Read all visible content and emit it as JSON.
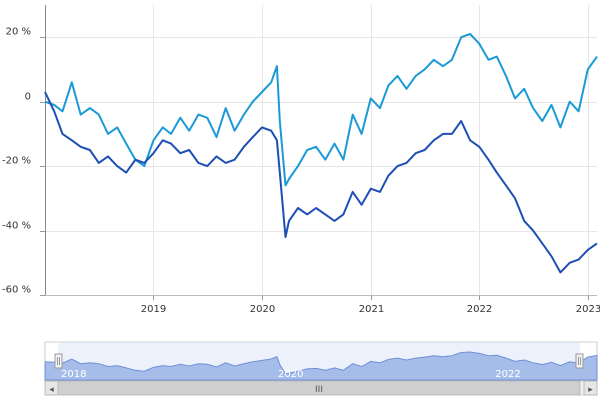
{
  "chart_data": {
    "type": "line",
    "title": "",
    "xlabel": "",
    "ylabel": "",
    "xlim": [
      "2018-01-01",
      "2023-02-01"
    ],
    "ylim": [
      -60,
      30
    ],
    "y_ticks": [
      -60,
      -40,
      -20,
      0,
      20
    ],
    "y_tick_labels": [
      "-60 %",
      "-40 %",
      "-20 %",
      "0",
      "20 %"
    ],
    "x_ticks": [
      "2019-01-01",
      "2020-01-01",
      "2021-01-01",
      "2022-01-01",
      "2023-01-01"
    ],
    "x_tick_labels": [
      "2019",
      "2020",
      "2021",
      "2022",
      "2023"
    ],
    "grid": true,
    "series": [
      {
        "color": "#1a9ad6",
        "x": [
          "2018-01-01",
          "2018-02-01",
          "2018-03-01",
          "2018-04-01",
          "2018-05-01",
          "2018-06-01",
          "2018-07-01",
          "2018-08-01",
          "2018-09-01",
          "2018-10-01",
          "2018-11-01",
          "2018-12-01",
          "2019-01-01",
          "2019-02-01",
          "2019-03-01",
          "2019-04-01",
          "2019-05-01",
          "2019-06-01",
          "2019-07-01",
          "2019-08-01",
          "2019-09-01",
          "2019-10-01",
          "2019-11-01",
          "2019-12-01",
          "2020-01-01",
          "2020-02-01",
          "2020-02-20",
          "2020-03-01",
          "2020-03-20",
          "2020-04-01",
          "2020-05-01",
          "2020-06-01",
          "2020-07-01",
          "2020-08-01",
          "2020-09-01",
          "2020-10-01",
          "2020-11-01",
          "2020-12-01",
          "2021-01-01",
          "2021-02-01",
          "2021-03-01",
          "2021-04-01",
          "2021-05-01",
          "2021-06-01",
          "2021-07-01",
          "2021-08-01",
          "2021-09-01",
          "2021-10-01",
          "2021-11-01",
          "2021-12-01",
          "2022-01-01",
          "2022-02-01",
          "2022-03-01",
          "2022-04-01",
          "2022-05-01",
          "2022-06-01",
          "2022-07-01",
          "2022-08-01",
          "2022-09-01",
          "2022-10-01",
          "2022-11-01",
          "2022-12-01",
          "2023-01-01",
          "2023-02-01"
        ],
        "values": [
          0,
          -1,
          -3,
          6,
          -4,
          -2,
          -4,
          -10,
          -8,
          -13,
          -18,
          -20,
          -12,
          -8,
          -10,
          -5,
          -9,
          -4,
          -5,
          -11,
          -2,
          -9,
          -4,
          0,
          3,
          6,
          11,
          -6,
          -26,
          -24,
          -20,
          -15,
          -14,
          -18,
          -13,
          -18,
          -4,
          -10,
          1,
          -2,
          5,
          8,
          4,
          8,
          10,
          13,
          11,
          13,
          20,
          21,
          18,
          13,
          14,
          8,
          1,
          4,
          -2,
          -6,
          -1,
          -8,
          0,
          -3,
          10,
          14
        ]
      },
      {
        "color": "#1d4fb5",
        "x": [
          "2018-01-01",
          "2018-02-01",
          "2018-03-01",
          "2018-04-01",
          "2018-05-01",
          "2018-06-01",
          "2018-07-01",
          "2018-08-01",
          "2018-09-01",
          "2018-10-01",
          "2018-11-01",
          "2018-12-01",
          "2019-01-01",
          "2019-02-01",
          "2019-03-01",
          "2019-04-01",
          "2019-05-01",
          "2019-06-01",
          "2019-07-01",
          "2019-08-01",
          "2019-09-01",
          "2019-10-01",
          "2019-11-01",
          "2019-12-01",
          "2020-01-01",
          "2020-02-01",
          "2020-02-20",
          "2020-03-01",
          "2020-03-20",
          "2020-04-01",
          "2020-05-01",
          "2020-06-01",
          "2020-07-01",
          "2020-08-01",
          "2020-09-01",
          "2020-10-01",
          "2020-11-01",
          "2020-12-01",
          "2021-01-01",
          "2021-02-01",
          "2021-03-01",
          "2021-04-01",
          "2021-05-01",
          "2021-06-01",
          "2021-07-01",
          "2021-08-01",
          "2021-09-01",
          "2021-10-01",
          "2021-11-01",
          "2021-12-01",
          "2022-01-01",
          "2022-02-01",
          "2022-03-01",
          "2022-04-01",
          "2022-05-01",
          "2022-06-01",
          "2022-07-01",
          "2022-08-01",
          "2022-09-01",
          "2022-10-01",
          "2022-11-01",
          "2022-12-01",
          "2023-01-01",
          "2023-02-01"
        ],
        "values": [
          3,
          -3,
          -10,
          -12,
          -14,
          -15,
          -19,
          -17,
          -20,
          -22,
          -18,
          -19,
          -16,
          -12,
          -13,
          -16,
          -15,
          -19,
          -20,
          -17,
          -19,
          -18,
          -14,
          -11,
          -8,
          -9,
          -12,
          -22,
          -42,
          -37,
          -33,
          -35,
          -33,
          -35,
          -37,
          -35,
          -28,
          -32,
          -27,
          -28,
          -23,
          -20,
          -19,
          -16,
          -15,
          -12,
          -10,
          -10,
          -6,
          -12,
          -14,
          -18,
          -22,
          -26,
          -30,
          -37,
          -40,
          -44,
          -48,
          -53,
          -50,
          -49,
          -46,
          -44
        ]
      }
    ]
  },
  "navigator": {
    "x_tick_labels": [
      "2018",
      "2020",
      "2022"
    ],
    "scrollbar_grip": "III",
    "left_arrow": "◂",
    "right_arrow": "▸"
  }
}
